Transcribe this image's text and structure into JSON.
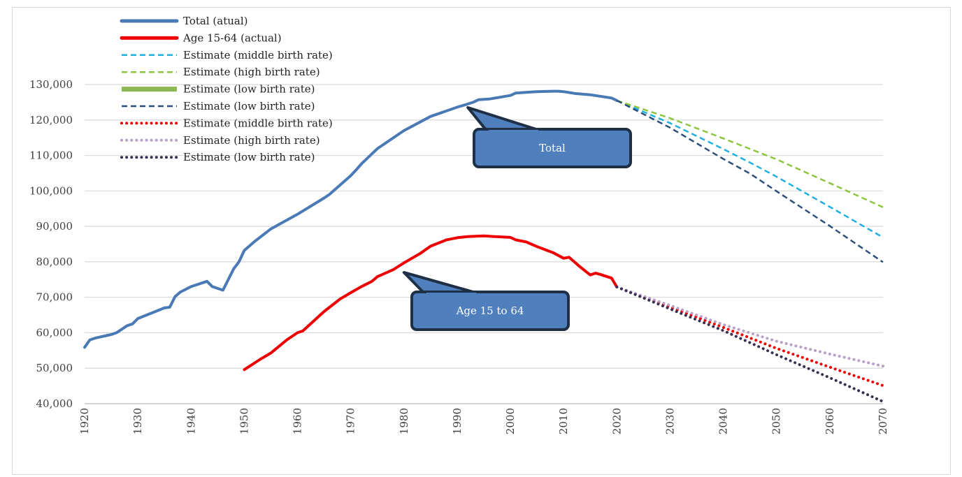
{
  "chart_data": {
    "type": "line",
    "title": "",
    "xlabel": "",
    "ylabel": "",
    "xlim": [
      1920,
      2070
    ],
    "ylim": [
      40000,
      130000
    ],
    "y_ticks": [
      "40,000",
      "50,000",
      "60,000",
      "70,000",
      "80,000",
      "90,000",
      "100,000",
      "110,000",
      "120,000",
      "130,000"
    ],
    "x_ticks": [
      "1920",
      "1930",
      "1940",
      "1950",
      "1960",
      "1970",
      "1980",
      "1990",
      "2000",
      "2010",
      "2020",
      "2030",
      "2040",
      "2050",
      "2060",
      "2070"
    ],
    "grid": "horizontal",
    "legend_position": "top-left",
    "series": [
      {
        "name": "Total (atual)",
        "color": "#4a7ab5",
        "style": "solid-thick",
        "x": [
          1920,
          1921,
          1922,
          1925,
          1926,
          1928,
          1929,
          1930,
          1935,
          1936,
          1937,
          1938,
          1940,
          1943,
          1944,
          1946,
          1948,
          1949,
          1950,
          1952,
          1955,
          1960,
          1965,
          1966,
          1970,
          1971,
          1972,
          1975,
          1980,
          1985,
          1990,
          1992,
          1993,
          1994,
          1996,
          2000,
          2001,
          2005,
          2008,
          2009,
          2010,
          2012,
          2015,
          2019,
          2020
        ],
        "y": [
          55900,
          58000,
          58500,
          59500,
          60000,
          62000,
          62500,
          64000,
          67000,
          67200,
          70200,
          71500,
          73000,
          74500,
          73000,
          72000,
          78000,
          80000,
          83200,
          85800,
          89300,
          93400,
          98000,
          99000,
          104300,
          105900,
          107600,
          111900,
          117000,
          121000,
          123600,
          124500,
          125000,
          125700,
          125900,
          126900,
          127600,
          128000,
          128100,
          128100,
          128000,
          127500,
          127100,
          126200,
          125500
        ]
      },
      {
        "name": "Age 15-64 (actual)",
        "color": "#ee0000",
        "style": "solid-thick",
        "x": [
          1950,
          1953,
          1955,
          1958,
          1960,
          1961,
          1965,
          1968,
          1970,
          1972,
          1974,
          1975,
          1978,
          1980,
          1983,
          1985,
          1988,
          1990,
          1992,
          1995,
          1997,
          2000,
          2001,
          2003,
          2005,
          2008,
          2010,
          2011,
          2013,
          2015,
          2016,
          2017,
          2019,
          2020
        ],
        "y": [
          49600,
          52500,
          54300,
          58000,
          60000,
          60500,
          66000,
          69500,
          71300,
          73000,
          74500,
          75800,
          77800,
          79700,
          82300,
          84400,
          86200,
          86800,
          87100,
          87300,
          87100,
          86900,
          86200,
          85600,
          84300,
          82600,
          81000,
          81300,
          78700,
          76300,
          76800,
          76400,
          75400,
          72900
        ]
      },
      {
        "name": "Estimate (middle birth rate)",
        "color": "#1fb0e0",
        "style": "dashed",
        "x": [
          2020,
          2030,
          2040,
          2045,
          2050,
          2060,
          2070
        ],
        "y": [
          125500,
          119100,
          111800,
          108000,
          104000,
          95500,
          86900
        ]
      },
      {
        "name": "Estimate (high birth rate)",
        "color": "#8cc63e",
        "style": "dashed",
        "x": [
          2020,
          2030,
          2040,
          2050,
          2060,
          2070
        ],
        "y": [
          125500,
          120500,
          114800,
          108900,
          102200,
          95400
        ]
      },
      {
        "name": "Estimate (low birth rate)",
        "color": "#8db751",
        "style": "solid-thick",
        "x": [],
        "y": []
      },
      {
        "name": "Estimate (low birth rate)",
        "color": "#2d4f7c",
        "style": "dashed",
        "x": [
          2020,
          2030,
          2040,
          2045,
          2050,
          2060,
          2070
        ],
        "y": [
          125500,
          117800,
          109000,
          104900,
          99900,
          90100,
          79900
        ]
      },
      {
        "name": "Estimate (middle birth rate)",
        "color": "#ee0000",
        "style": "dotted",
        "x": [
          2020,
          2030,
          2040,
          2050,
          2060,
          2070
        ],
        "y": [
          72900,
          67300,
          61500,
          55600,
          50300,
          45100
        ]
      },
      {
        "name": "Estimate (high birth rate)",
        "color": "#b8a0c8",
        "style": "dotted",
        "x": [
          2020,
          2030,
          2040,
          2050,
          2060,
          2070
        ],
        "y": [
          72900,
          67700,
          62300,
          57600,
          54000,
          50600
        ]
      },
      {
        "name": "Estimate (low birth rate)",
        "color": "#3a2f52",
        "style": "dotted",
        "x": [
          2020,
          2030,
          2040,
          2050,
          2060,
          2070
        ],
        "y": [
          72900,
          66700,
          60600,
          53800,
          47300,
          40600
        ]
      }
    ],
    "annotations": [
      {
        "text": "Total",
        "pointer": [
          1992,
          123500
        ]
      },
      {
        "text": "Age 15 to 64",
        "pointer": [
          1980,
          77000
        ]
      }
    ]
  }
}
